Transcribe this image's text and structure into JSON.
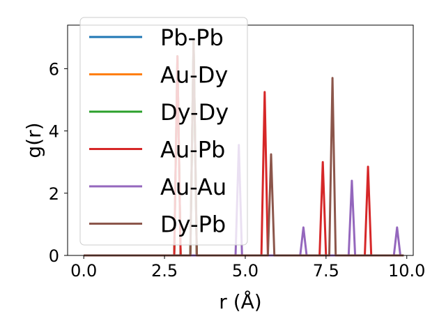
{
  "chart_data": {
    "type": "line",
    "title": "",
    "xlabel": "r (Å)",
    "ylabel": "g(r)",
    "xlim": [
      -0.5,
      10.2
    ],
    "ylim": [
      0,
      7.4
    ],
    "xticks": [
      0.0,
      2.5,
      5.0,
      7.5,
      10.0
    ],
    "xtick_labels": [
      "0.0",
      "2.5",
      "5.0",
      "7.5",
      "10.0"
    ],
    "yticks": [
      0,
      2,
      4,
      6
    ],
    "ytick_labels": [
      "0",
      "2",
      "4",
      "6"
    ],
    "grid": false,
    "legend_position": "top-left",
    "series": [
      {
        "name": "Pb-Pb",
        "color": "#1f77b4",
        "x": [
          0.0,
          2.8,
          2.9,
          3.0,
          3.3,
          3.4,
          3.5,
          9.9
        ],
        "y": [
          0,
          0,
          6.4,
          0,
          0,
          6.9,
          0,
          0
        ]
      },
      {
        "name": "Au-Dy",
        "color": "#ff7f0e",
        "x": [
          0.0,
          2.8,
          2.9,
          3.0,
          3.3,
          3.4,
          3.5,
          9.9
        ],
        "y": [
          0,
          0,
          6.4,
          0,
          0,
          6.9,
          0,
          0
        ]
      },
      {
        "name": "Dy-Dy",
        "color": "#2ca02c",
        "x": [
          0.0,
          2.8,
          2.9,
          3.0,
          3.3,
          3.4,
          3.5,
          9.9
        ],
        "y": [
          0,
          0,
          6.4,
          0,
          0,
          6.9,
          0,
          0
        ]
      },
      {
        "name": "Au-Pb",
        "color": "#d62728",
        "x": [
          0.0,
          2.8,
          2.9,
          3.0,
          5.5,
          5.6,
          5.7,
          7.3,
          7.4,
          7.5,
          8.7,
          8.8,
          8.9,
          9.9
        ],
        "y": [
          0,
          0,
          6.4,
          0,
          0,
          5.25,
          0,
          0,
          3.0,
          0,
          0,
          2.85,
          0,
          0
        ]
      },
      {
        "name": "Au-Au",
        "color": "#9467bd",
        "x": [
          0.0,
          4.7,
          4.8,
          4.9,
          6.7,
          6.8,
          6.9,
          8.2,
          8.3,
          8.4,
          9.6,
          9.7,
          9.8,
          9.9
        ],
        "y": [
          0,
          0,
          3.55,
          0,
          0,
          0.9,
          0,
          0,
          2.4,
          0,
          0,
          0.9,
          0,
          0
        ]
      },
      {
        "name": "Dy-Pb",
        "color": "#8c564b",
        "x": [
          0.0,
          3.3,
          3.4,
          3.5,
          5.7,
          5.8,
          5.9,
          7.6,
          7.7,
          7.8,
          9.9
        ],
        "y": [
          0,
          0,
          6.9,
          0,
          0,
          3.25,
          0,
          0,
          5.7,
          0,
          0
        ]
      }
    ]
  }
}
